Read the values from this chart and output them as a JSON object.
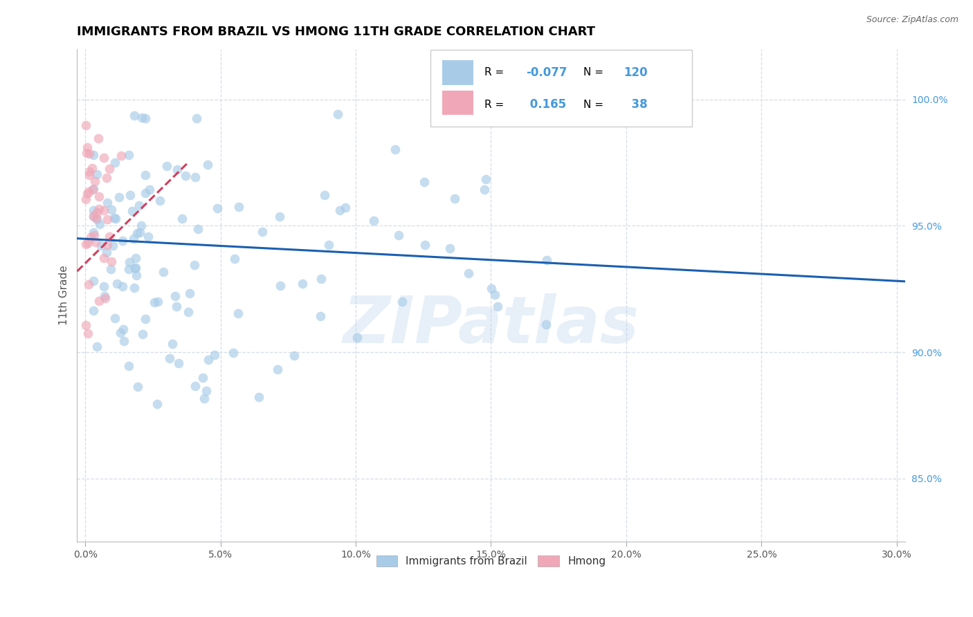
{
  "title": "IMMIGRANTS FROM BRAZIL VS HMONG 11TH GRADE CORRELATION CHART",
  "source_text": "Source: ZipAtlas.com",
  "ylabel": "11th Grade",
  "xlim_min": -0.3,
  "xlim_max": 30.3,
  "ylim_min": 82.5,
  "ylim_max": 102.0,
  "xticks": [
    0,
    5,
    10,
    15,
    20,
    25,
    30
  ],
  "xtick_labels": [
    "0.0%",
    "5.0%",
    "10.0%",
    "15.0%",
    "20.0%",
    "25.0%",
    "30.0%"
  ],
  "yticks": [
    85,
    90,
    95,
    100
  ],
  "ytick_labels": [
    "85.0%",
    "90.0%",
    "95.0%",
    "100.0%"
  ],
  "blue_color": "#a8cce8",
  "pink_color": "#f0a8b8",
  "trend_blue_color": "#1a5fb0",
  "trend_pink_color": "#d04060",
  "watermark": "ZIPatlas",
  "legend_R_blue": "-0.077",
  "legend_N_blue": "120",
  "legend_R_pink": "0.165",
  "legend_N_pink": "38",
  "legend_label_blue": "Immigrants from Brazil",
  "legend_label_pink": "Hmong",
  "blue_trend_x": [
    -0.3,
    30.3
  ],
  "blue_trend_y": [
    94.5,
    92.8
  ],
  "pink_trend_x": [
    -0.3,
    3.8
  ],
  "pink_trend_y": [
    93.2,
    97.5
  ],
  "grid_color": "#d5dde8",
  "tick_color": "#4499dd",
  "title_fontsize": 13,
  "label_fontsize": 11,
  "tick_fontsize": 10,
  "scatter_size": 90,
  "scatter_alpha": 0.65
}
